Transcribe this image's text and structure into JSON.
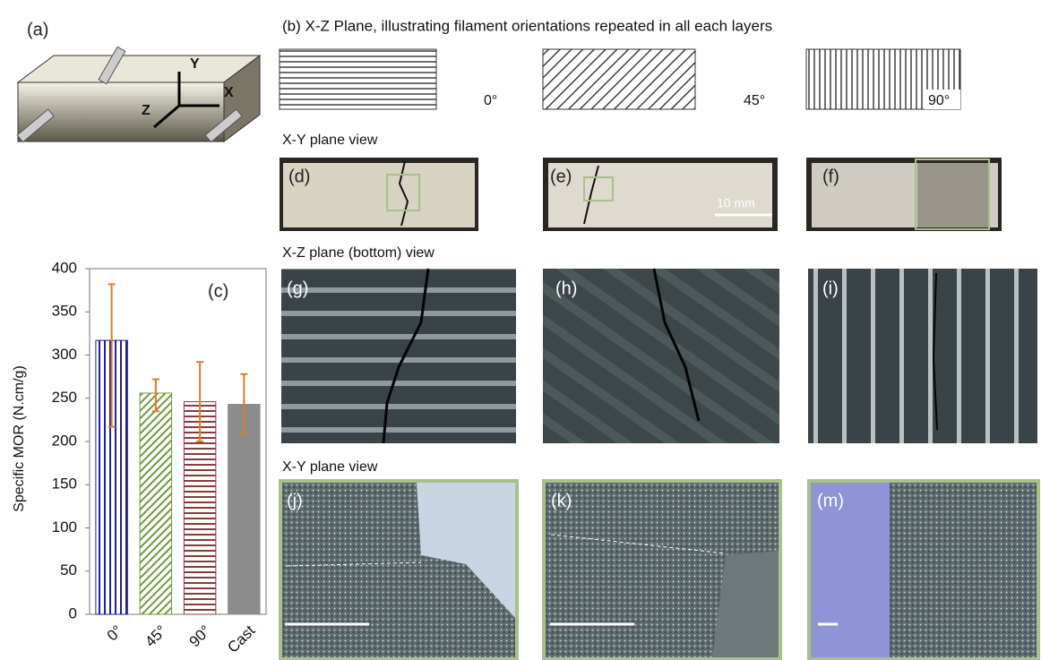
{
  "chart_data": {
    "type": "bar",
    "panel_label": "(c)",
    "ylabel": "Specific MOR (N.cm/g)",
    "categories": [
      "0°",
      "45°",
      "90°",
      "Cast"
    ],
    "values": [
      317,
      256,
      246,
      243
    ],
    "error_low": [
      100,
      21,
      46,
      35
    ],
    "error_high": [
      65,
      16,
      46,
      35
    ],
    "colors": [
      "#1f1fa0",
      "#6f9a3a",
      "#8a3a3a",
      "#8c8c8c"
    ],
    "error_color": "#e07b24",
    "ylim": [
      0,
      400
    ],
    "yticks": [
      0,
      50,
      100,
      150,
      200,
      250,
      300,
      350,
      400
    ]
  },
  "figure": {
    "panel_a": {
      "label": "(a)",
      "axes": [
        "Y",
        "X",
        "Z"
      ]
    },
    "panel_b": {
      "title": "(b) X-Z Plane, illustrating  filament orientations repeated in all each layers",
      "orientations": [
        "0°",
        "45°",
        "90°"
      ]
    },
    "row_titles": [
      "X-Y plane view",
      "X-Z plane (bottom) view",
      "X-Y plane view"
    ],
    "row1_labels": [
      "(d)",
      "(e)",
      "(f)"
    ],
    "scale_bar": "10 mm",
    "row2_labels": [
      "(g)",
      "(h)",
      "(i)"
    ],
    "row3_labels": [
      "(j)",
      "(k)",
      "(m)"
    ]
  }
}
